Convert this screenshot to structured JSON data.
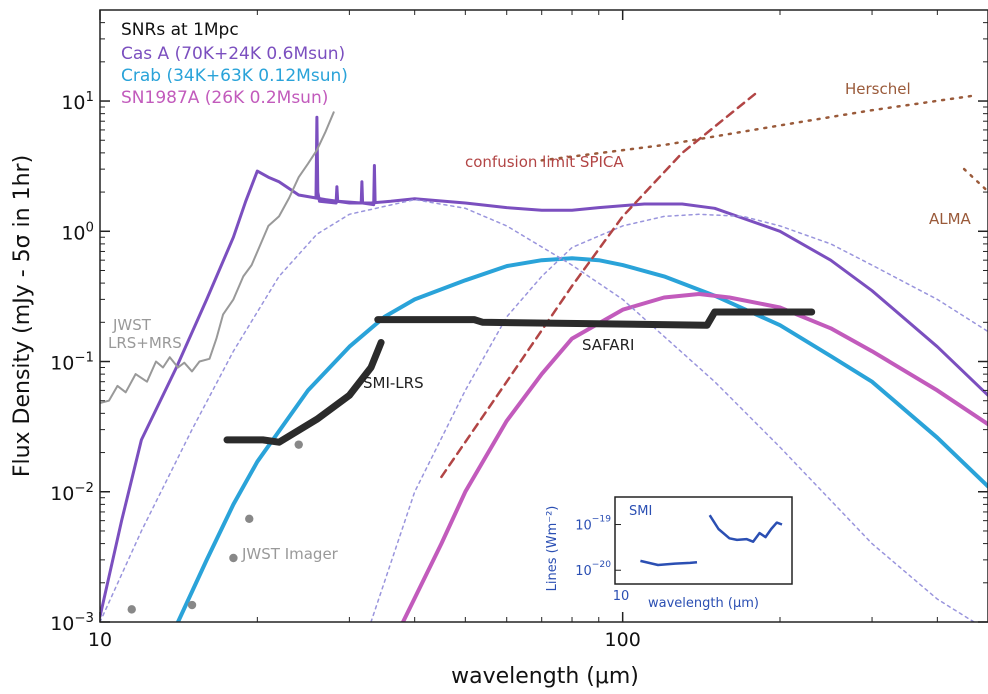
{
  "chart_data": {
    "type": "line",
    "x_scale": "log",
    "y_scale": "log",
    "xlim": [
      10,
      500
    ],
    "ylim": [
      0.001,
      50
    ],
    "xlabel": "wavelength (μm)",
    "ylabel": "Flux Density (mJy - 5σ in 1hr)",
    "x_ticks": [
      {
        "v": 10,
        "label": "10"
      },
      {
        "v": 100,
        "label": "100"
      }
    ],
    "y_ticks": [
      {
        "v": 0.001,
        "b": "10",
        "e": "−3"
      },
      {
        "v": 0.01,
        "b": "10",
        "e": "−2"
      },
      {
        "v": 0.1,
        "b": "10",
        "e": "−1"
      },
      {
        "v": 1,
        "b": "10",
        "e": "0"
      },
      {
        "v": 10,
        "b": "10",
        "e": "1"
      }
    ],
    "legend_title": "SNRs at 1Mpc",
    "legend": [
      {
        "label": "Cas A (70K+24K 0.6Msun)",
        "color": "#7b4fbf"
      },
      {
        "label": "Crab (34K+63K 0.12Msun)",
        "color": "#2aa3d9"
      },
      {
        "label": "SN1987A (26K 0.2Msun)",
        "color": "#c25bbc"
      }
    ],
    "colors": {
      "cas": "#7b4fbf",
      "crab": "#2aa3d9",
      "sn": "#c25bbc",
      "dust_dotted": "#9a95dd",
      "jwst": "#999999",
      "spica": "#b24545",
      "herschel": "#9a5a3a",
      "instrument": "#2b2b2b",
      "inset": "#2b4fb3"
    },
    "series": [
      {
        "key": "cas_a",
        "color": "#7b4fbf",
        "width": 3,
        "points": [
          [
            10,
            0.0011
          ],
          [
            11,
            0.006
          ],
          [
            12,
            0.025
          ],
          [
            14,
            0.09
          ],
          [
            16,
            0.3
          ],
          [
            18,
            0.9
          ],
          [
            19,
            1.7
          ],
          [
            20,
            2.9
          ],
          [
            21,
            2.6
          ],
          [
            22,
            2.4
          ],
          [
            24,
            1.9
          ],
          [
            27,
            1.75
          ],
          [
            30,
            1.65
          ],
          [
            33,
            1.65
          ],
          [
            36,
            1.7
          ],
          [
            40,
            1.78
          ],
          [
            50,
            1.65
          ],
          [
            60,
            1.52
          ],
          [
            70,
            1.45
          ],
          [
            80,
            1.45
          ],
          [
            90,
            1.52
          ],
          [
            110,
            1.62
          ],
          [
            130,
            1.62
          ],
          [
            150,
            1.5
          ],
          [
            200,
            1.0
          ],
          [
            250,
            0.6
          ],
          [
            300,
            0.35
          ],
          [
            400,
            0.13
          ],
          [
            500,
            0.055
          ]
        ]
      },
      {
        "key": "cas_a_spikes",
        "color": "#7b4fbf",
        "width": 3,
        "points": [
          [
            25.9,
            1.8
          ],
          [
            26.0,
            7.5
          ],
          [
            26.1,
            2.0
          ],
          [
            26.3,
            1.7
          ],
          [
            28.3,
            1.65
          ],
          [
            28.4,
            2.2
          ],
          [
            28.5,
            1.7
          ],
          [
            31.6,
            1.65
          ],
          [
            31.7,
            2.4
          ],
          [
            31.8,
            1.65
          ],
          [
            33.4,
            1.6
          ],
          [
            33.5,
            3.2
          ],
          [
            33.6,
            1.7
          ]
        ]
      },
      {
        "key": "crab",
        "color": "#2aa3d9",
        "width": 4,
        "points": [
          [
            14.1,
            0.001
          ],
          [
            16,
            0.003
          ],
          [
            18,
            0.008
          ],
          [
            20,
            0.017
          ],
          [
            25,
            0.06
          ],
          [
            30,
            0.13
          ],
          [
            35,
            0.22
          ],
          [
            40,
            0.3
          ],
          [
            50,
            0.42
          ],
          [
            60,
            0.54
          ],
          [
            70,
            0.6
          ],
          [
            80,
            0.62
          ],
          [
            90,
            0.6
          ],
          [
            100,
            0.55
          ],
          [
            120,
            0.45
          ],
          [
            150,
            0.32
          ],
          [
            200,
            0.19
          ],
          [
            250,
            0.11
          ],
          [
            300,
            0.07
          ],
          [
            400,
            0.026
          ],
          [
            500,
            0.011
          ]
        ]
      },
      {
        "key": "sn1987a",
        "color": "#c25bbc",
        "width": 4,
        "points": [
          [
            38,
            0.001
          ],
          [
            45,
            0.004
          ],
          [
            50,
            0.01
          ],
          [
            60,
            0.035
          ],
          [
            70,
            0.08
          ],
          [
            80,
            0.15
          ],
          [
            100,
            0.25
          ],
          [
            120,
            0.31
          ],
          [
            140,
            0.33
          ],
          [
            160,
            0.31
          ],
          [
            200,
            0.26
          ],
          [
            250,
            0.18
          ],
          [
            300,
            0.12
          ],
          [
            400,
            0.06
          ],
          [
            500,
            0.033
          ]
        ]
      },
      {
        "key": "dust_warm",
        "color": "#9a95dd",
        "width": 1.5,
        "dash": "3,4",
        "points": [
          [
            10,
            0.001
          ],
          [
            12,
            0.005
          ],
          [
            15,
            0.03
          ],
          [
            18,
            0.12
          ],
          [
            22,
            0.45
          ],
          [
            26,
            0.95
          ],
          [
            30,
            1.35
          ],
          [
            40,
            1.75
          ],
          [
            50,
            1.5
          ],
          [
            60,
            1.1
          ],
          [
            80,
            0.55
          ],
          [
            100,
            0.3
          ],
          [
            150,
            0.07
          ],
          [
            200,
            0.022
          ],
          [
            300,
            0.004
          ],
          [
            400,
            0.0015
          ],
          [
            470,
            0.001
          ]
        ]
      },
      {
        "key": "dust_cold",
        "color": "#9a95dd",
        "width": 1.5,
        "dash": "3,4",
        "points": [
          [
            33,
            0.001
          ],
          [
            40,
            0.01
          ],
          [
            50,
            0.06
          ],
          [
            60,
            0.22
          ],
          [
            70,
            0.45
          ],
          [
            80,
            0.75
          ],
          [
            100,
            1.1
          ],
          [
            120,
            1.3
          ],
          [
            140,
            1.35
          ],
          [
            170,
            1.3
          ],
          [
            200,
            1.1
          ],
          [
            250,
            0.8
          ],
          [
            300,
            0.55
          ],
          [
            400,
            0.3
          ],
          [
            500,
            0.17
          ]
        ]
      },
      {
        "key": "jwst_lrs_mrs",
        "color": "#999999",
        "width": 2,
        "points": [
          [
            10,
            0.048
          ],
          [
            10.4,
            0.05
          ],
          [
            10.8,
            0.065
          ],
          [
            11.2,
            0.058
          ],
          [
            11.7,
            0.08
          ],
          [
            12.3,
            0.07
          ],
          [
            12.8,
            0.1
          ],
          [
            13.2,
            0.09
          ],
          [
            13.6,
            0.108
          ],
          [
            14.1,
            0.09
          ],
          [
            14.5,
            0.098
          ],
          [
            15,
            0.084
          ],
          [
            15.5,
            0.1
          ],
          [
            16.2,
            0.105
          ],
          [
            16.7,
            0.15
          ],
          [
            17.2,
            0.23
          ],
          [
            18,
            0.3
          ],
          [
            18.8,
            0.45
          ],
          [
            19.5,
            0.55
          ],
          [
            20.3,
            0.8
          ],
          [
            21,
            1.1
          ],
          [
            22,
            1.3
          ],
          [
            23,
            1.8
          ],
          [
            24,
            2.6
          ],
          [
            25,
            3.3
          ],
          [
            26,
            4.2
          ],
          [
            27,
            5.8
          ],
          [
            28,
            8.2
          ]
        ]
      },
      {
        "key": "spica_confusion",
        "color": "#b24545",
        "width": 2.5,
        "dash": "8,6",
        "points": [
          [
            45,
            0.013
          ],
          [
            60,
            0.07
          ],
          [
            80,
            0.38
          ],
          [
            100,
            1.3
          ],
          [
            130,
            4.0
          ],
          [
            180,
            11.5
          ]
        ]
      },
      {
        "key": "herschel",
        "color": "#9a5a3a",
        "width": 2.5,
        "dash": "2,7",
        "points": [
          [
            70,
            3.5
          ],
          [
            120,
            4.6
          ],
          [
            200,
            6.5
          ],
          [
            300,
            8.5
          ],
          [
            470,
            11.0
          ]
        ]
      },
      {
        "key": "alma",
        "color": "#9a5a3a",
        "width": 2.5,
        "dash": "2,7",
        "points": [
          [
            450,
            3.0
          ],
          [
            495,
            2.1
          ]
        ]
      },
      {
        "key": "safari",
        "color": "#2b2b2b",
        "width": 7,
        "points": [
          [
            34,
            0.21
          ],
          [
            52,
            0.21
          ],
          [
            54,
            0.2
          ],
          [
            145,
            0.19
          ],
          [
            150,
            0.24
          ],
          [
            230,
            0.24
          ]
        ]
      },
      {
        "key": "smi_lrs",
        "color": "#2b2b2b",
        "width": 7,
        "points": [
          [
            17.5,
            0.025
          ],
          [
            20.5,
            0.025
          ],
          [
            22,
            0.024
          ],
          [
            26,
            0.036
          ],
          [
            30,
            0.055
          ],
          [
            33,
            0.09
          ],
          [
            34.5,
            0.14
          ]
        ]
      }
    ],
    "jwst_imager_points": [
      [
        11.5,
        0.00125
      ],
      [
        15,
        0.00135
      ],
      [
        18,
        0.0031
      ],
      [
        19.3,
        0.0062
      ],
      [
        24,
        0.023
      ]
    ],
    "labels": {
      "jwst_imager": "JWST Imager",
      "jwst_lrs_line1": "JWST",
      "jwst_lrs_line2": "LRS+MRS",
      "smi_lrs": "SMI-LRS",
      "safari": "SAFARI",
      "spica": "confusion limit SPICA",
      "herschel": "Herschel",
      "alma": "ALMA"
    },
    "inset": {
      "title": "SMI",
      "xlabel": "wavelength (μm)",
      "ylabel": "Lines (Wm⁻²)",
      "x_tick": "10",
      "y_ticks": [
        {
          "v": 1e-20,
          "b": "10",
          "e": "−20"
        },
        {
          "v": 1e-19,
          "b": "10",
          "e": "−19"
        }
      ],
      "xlim": [
        10,
        40
      ],
      "ylim": [
        5e-21,
        4e-19
      ],
      "series": [
        [
          [
            12.2,
            1.6e-20
          ],
          [
            14,
            1.3e-20
          ],
          [
            16,
            1.4e-20
          ],
          [
            18,
            1.45e-20
          ],
          [
            19,
            1.5e-20
          ]
        ],
        [
          [
            21,
            1.6e-19
          ],
          [
            22.5,
            8e-20
          ],
          [
            24.5,
            5e-20
          ],
          [
            26,
            4.6e-20
          ],
          [
            28,
            4.8e-20
          ],
          [
            29.5,
            4.2e-20
          ],
          [
            31,
            6.5e-20
          ],
          [
            32.5,
            5.3e-20
          ],
          [
            34,
            8e-20
          ],
          [
            35.5,
            1.1e-19
          ],
          [
            37,
            1e-19
          ]
        ]
      ]
    }
  }
}
